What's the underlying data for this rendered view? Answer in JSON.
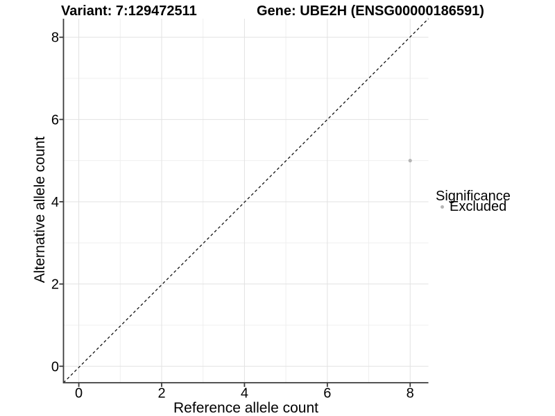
{
  "title": {
    "variant": "Variant: 7:129472511",
    "gene": "Gene: UBE2H (ENSG00000186591)"
  },
  "chart_data": {
    "type": "scatter",
    "titles": [
      "Variant: 7:129472511",
      "Gene: UBE2H (ENSG00000186591)"
    ],
    "xlabel": "Reference allele count",
    "ylabel": "Alternative allele count",
    "xlim": [
      -0.37,
      8.44
    ],
    "ylim": [
      -0.4,
      8.45
    ],
    "xticks": [
      0,
      2,
      4,
      6,
      8
    ],
    "yticks": [
      0,
      2,
      4,
      6,
      8
    ],
    "x_minor_ticks": [
      1,
      3,
      5,
      7
    ],
    "y_minor_ticks": [
      1,
      3,
      5,
      7
    ],
    "grid": "major+minor",
    "identity_line": {
      "style": "dashed",
      "slope": 1,
      "intercept": 0
    },
    "series": [
      {
        "name": "Excluded",
        "color": "#b5b5b5",
        "points": [
          {
            "x": 8,
            "y": 5
          }
        ]
      }
    ],
    "legend": {
      "title": "Significance",
      "position": "right",
      "items": [
        {
          "label": "Excluded",
          "color": "#b5b5b5",
          "marker": "circle"
        }
      ]
    }
  },
  "colors": {
    "background": "#ffffff",
    "axis": "#3a3a3a",
    "grid_major": "#e2e2e2",
    "grid_minor": "#efefef",
    "identity_line": "#111111",
    "text": "#000000"
  }
}
